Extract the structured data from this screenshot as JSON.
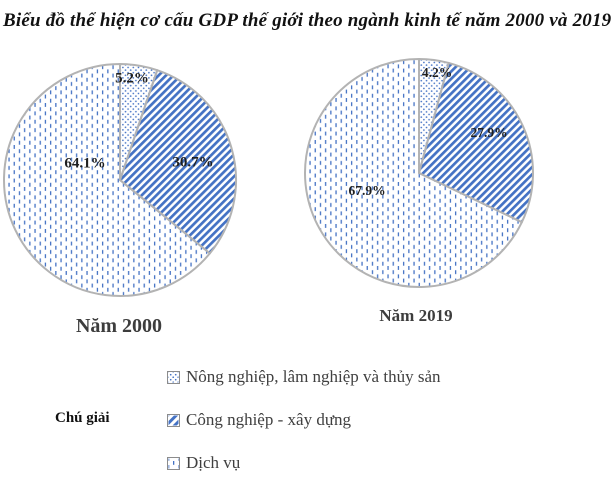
{
  "title": "Biểu đồ thể hiện cơ cấu GDP thế giới theo ngành kinh tế năm 2000 và 2019",
  "colors": {
    "pattern_blue": "#4472C4",
    "pie_outline": "#b3b3b3"
  },
  "chart_data": [
    {
      "type": "pie",
      "title": "Năm 2000",
      "categories": [
        "Nông nghiệp, lâm nghiệp và thủy sản",
        "Công nghiệp - xây dựng",
        "Dịch vụ"
      ],
      "values": [
        5.2,
        30.7,
        64.1
      ],
      "labels": [
        "5.2%",
        "30.7%",
        "64.1%"
      ],
      "patterns": [
        "dots",
        "diag",
        "vdash"
      ],
      "start_angle_deg": 0,
      "direction": "clockwise"
    },
    {
      "type": "pie",
      "title": "Năm 2019",
      "categories": [
        "Nông nghiệp, lâm nghiệp và thủy sản",
        "Công nghiệp - xây dựng",
        "Dịch vụ"
      ],
      "values": [
        4.2,
        27.9,
        67.9
      ],
      "labels": [
        "4.2%",
        "27.9%",
        "67.9%"
      ],
      "patterns": [
        "dots",
        "diag",
        "vdash"
      ],
      "start_angle_deg": 0,
      "direction": "clockwise"
    }
  ],
  "legend": {
    "heading": "Chú giải",
    "items": [
      {
        "label": "Nông nghiệp, lâm nghiệp và thủy sản",
        "pattern": "dots"
      },
      {
        "label": "Công nghiệp - xây dựng",
        "pattern": "diag"
      },
      {
        "label": "Dịch vụ",
        "pattern": "vdash"
      }
    ]
  }
}
